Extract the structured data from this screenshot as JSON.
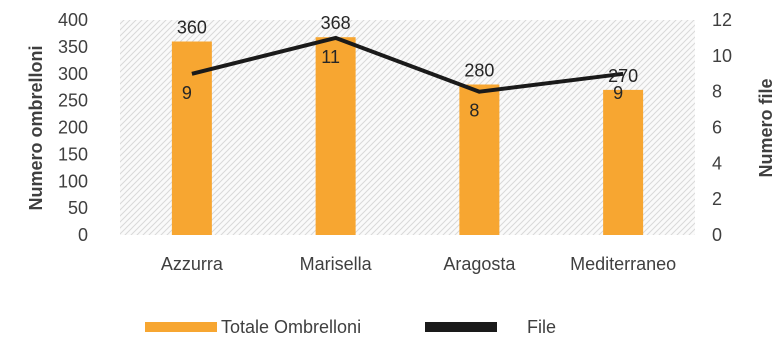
{
  "chart_data": {
    "type": "bar",
    "categories": [
      "Azzurra",
      "Marisella",
      "Aragosta",
      "Mediterraneo"
    ],
    "series": [
      {
        "name": "Totale Ombrelloni",
        "type": "bar",
        "axis": "left",
        "values": [
          360,
          368,
          280,
          270
        ],
        "color": "#F7A631"
      },
      {
        "name": "File",
        "type": "line",
        "axis": "right",
        "values": [
          9,
          11,
          8,
          9
        ],
        "color": "#1a1a1a"
      }
    ],
    "bar_data_labels": [
      "360",
      "368",
      "280",
      "270"
    ],
    "line_data_labels": [
      "9",
      "11",
      "8",
      "9"
    ],
    "ylabel": "Numero ombrelloni",
    "ylabel_right": "Numero file",
    "ylim": [
      0,
      400
    ],
    "ylim_right": [
      0,
      12
    ],
    "yticks": [
      0,
      50,
      100,
      150,
      200,
      250,
      300,
      350,
      400
    ],
    "yticks_right": [
      0,
      2,
      4,
      6,
      8,
      10,
      12
    ],
    "grid": false,
    "plot_background": "hatched light gray",
    "legend_position": "bottom"
  }
}
